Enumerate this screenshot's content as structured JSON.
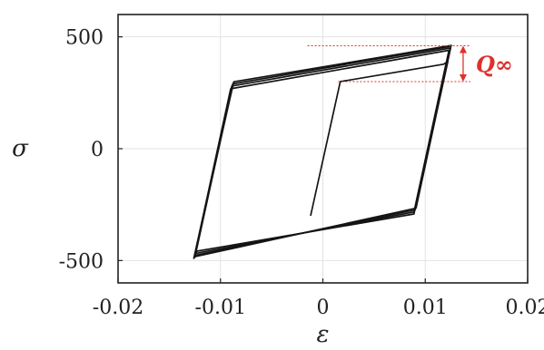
{
  "chart_data": {
    "type": "line",
    "title": "",
    "xlabel": "ε",
    "ylabel": "σ",
    "xlim": [
      -0.02,
      0.02
    ],
    "ylim": [
      -600,
      600
    ],
    "grid": true,
    "x_ticks": [
      -0.02,
      -0.01,
      0,
      0.01,
      0.02
    ],
    "y_ticks": [
      -500,
      0,
      500
    ],
    "x_tick_labels": [
      "-0.02",
      "-0.01",
      "0",
      "0.01",
      "0.02"
    ],
    "y_tick_labels": [
      "-500",
      "0",
      "500"
    ],
    "annotation": {
      "text": "Q∞",
      "y_from": 300,
      "y_to": 460,
      "x": 0.0137
    },
    "series": [
      {
        "x": [
          -0.0012,
          0.0017,
          0.0118,
          0.0122,
          0.0089,
          -0.0123,
          -0.0125,
          -0.009,
          0.0123
        ],
        "y": [
          -300,
          300,
          378,
          390,
          -292,
          -458,
          -470,
          268,
          440
        ]
      },
      {
        "x": [
          0.0123,
          0.0123,
          0.0089,
          -0.0124,
          -0.0125,
          -0.0089,
          0.0124
        ],
        "y": [
          440,
          438,
          -283,
          -468,
          -478,
          280,
          450
        ]
      },
      {
        "x": [
          0.0124,
          0.0124,
          0.009,
          -0.0124,
          -0.0125,
          -0.0088,
          0.0125
        ],
        "y": [
          450,
          446,
          -274,
          -476,
          -485,
          290,
          458
        ]
      },
      {
        "x": [
          0.0125,
          0.0125,
          0.0091,
          -0.0125,
          -0.0126,
          -0.0087,
          0.0126
        ],
        "y": [
          458,
          454,
          -266,
          -483,
          -490,
          299,
          462
        ]
      }
    ]
  }
}
